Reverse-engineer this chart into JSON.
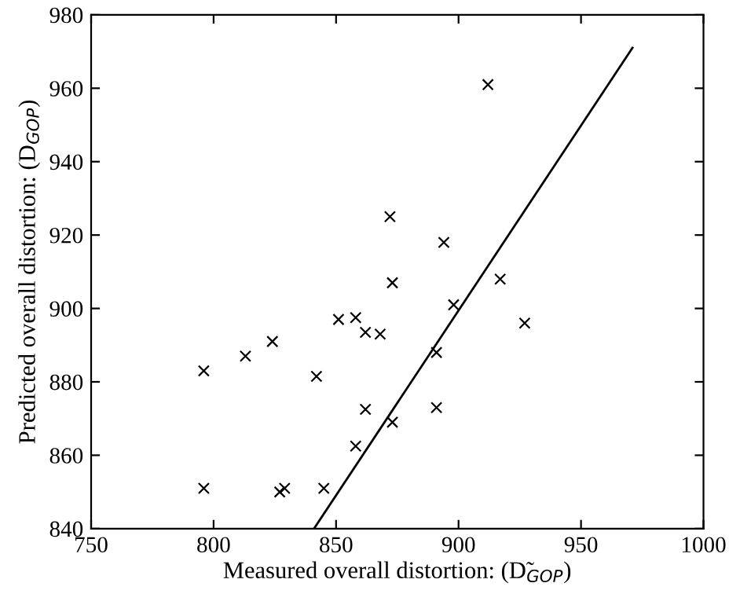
{
  "chart_data": {
    "type": "scatter",
    "xlabel": "Measured overall distortion: (D̃$_{GOP}$)",
    "ylabel": "Predicted overall distortion: (D$_{GOP}$)",
    "xlim": [
      750,
      1000
    ],
    "ylim": [
      840,
      980
    ],
    "xticks": [
      750,
      800,
      850,
      900,
      950,
      1000
    ],
    "yticks": [
      840,
      860,
      880,
      900,
      920,
      940,
      960,
      980
    ],
    "grid": false,
    "legend": false,
    "series": [
      {
        "marker": "cross",
        "color": "#000000",
        "x": [
          912,
          872,
          894,
          873,
          917,
          898,
          927,
          851,
          858,
          862,
          868,
          824,
          813,
          796,
          842,
          891,
          862,
          873,
          891,
          858,
          796,
          827,
          829,
          845
        ],
        "values": [
          961,
          925,
          918,
          907,
          908,
          901,
          896,
          897,
          897.5,
          893.5,
          893,
          891,
          887,
          883,
          881.5,
          888,
          872.5,
          869,
          873,
          862.5,
          851,
          850,
          851,
          851
        ]
      },
      {
        "type": "line",
        "marker": "none",
        "line_style": "solid",
        "color": "#000000",
        "x": [
          841,
          971
        ],
        "values": [
          840,
          971
        ]
      }
    ]
  }
}
